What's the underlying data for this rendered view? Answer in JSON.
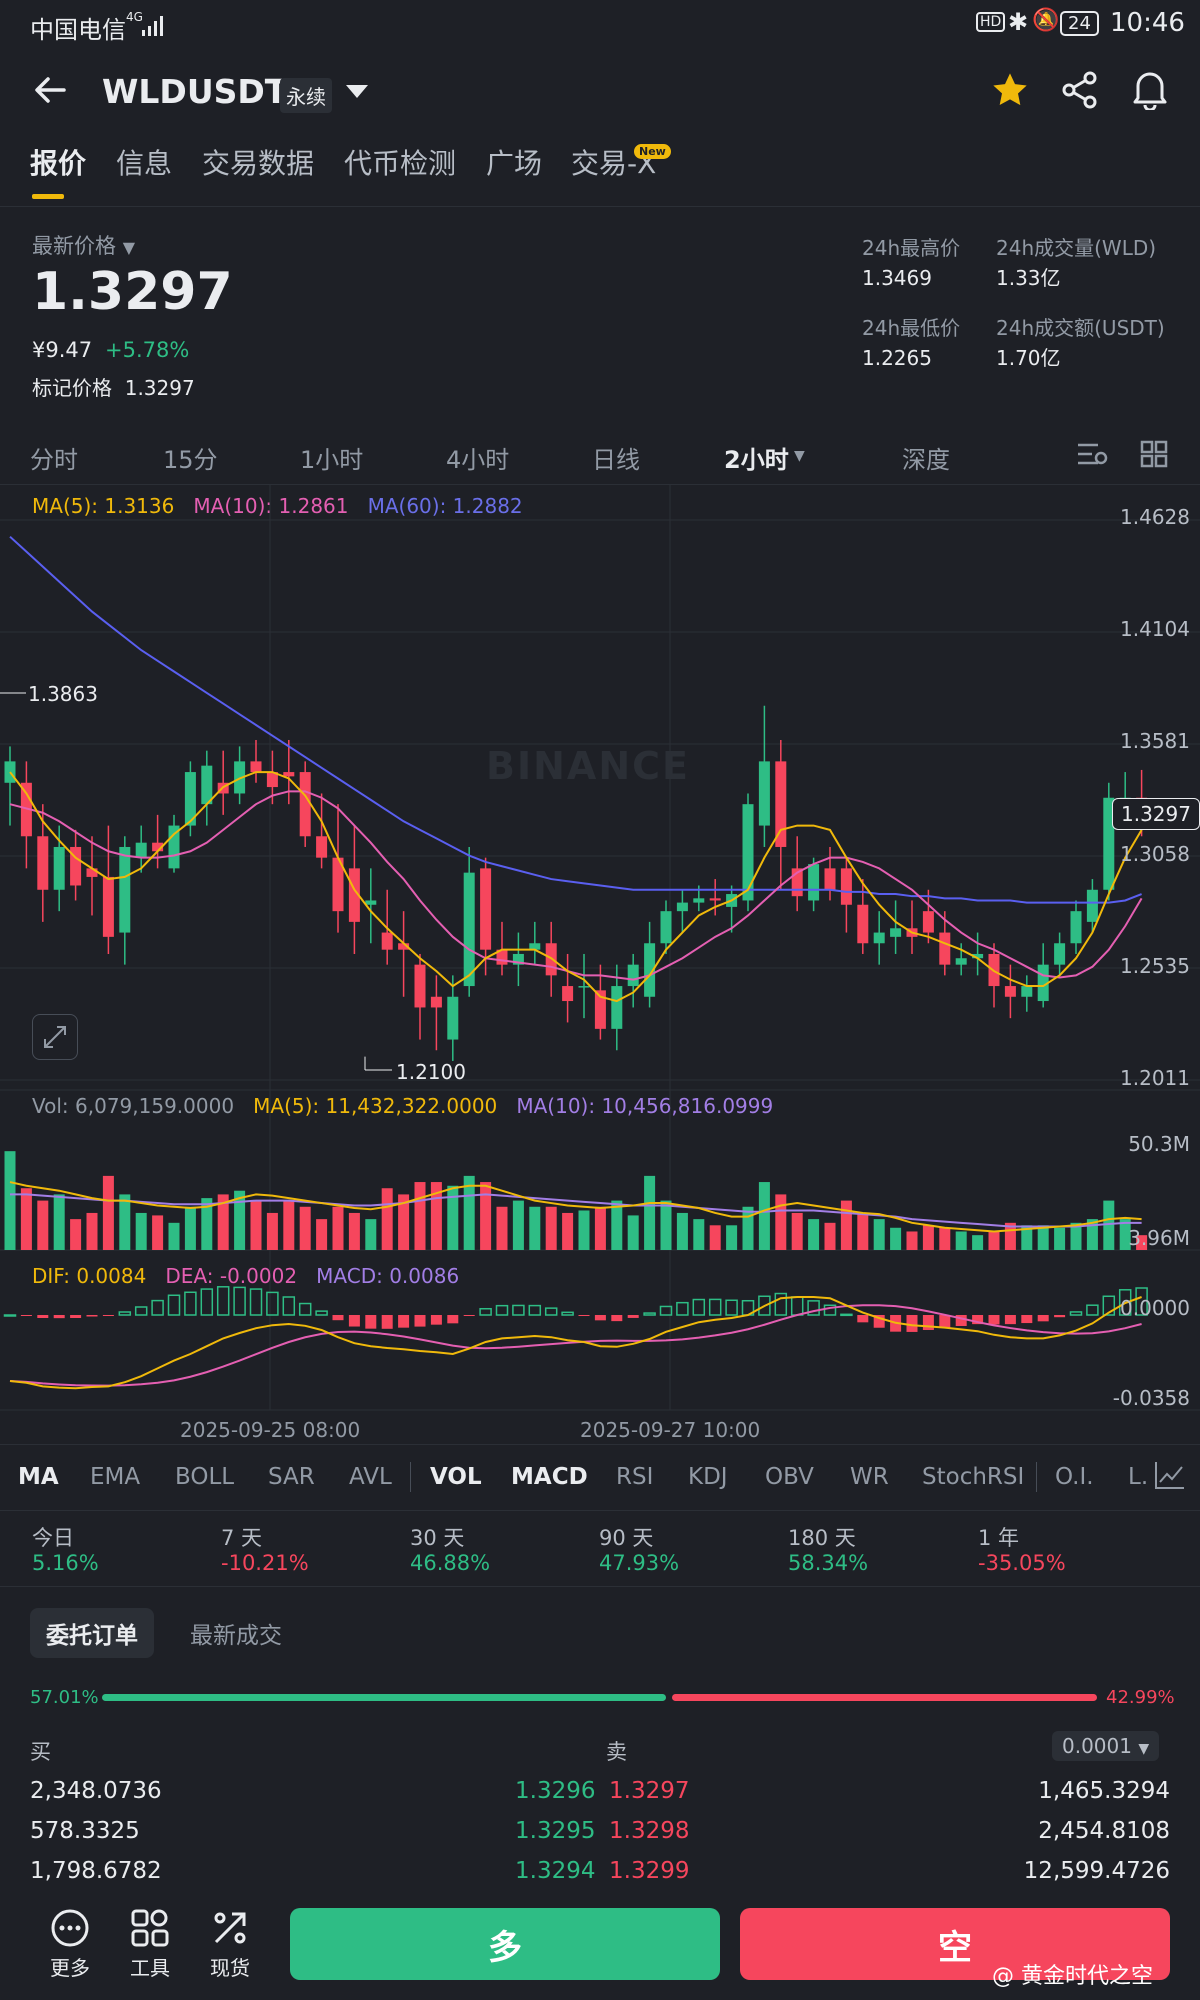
{
  "status": {
    "carrier": "中国电信",
    "network": "4G",
    "battery": "24",
    "time": "10:46"
  },
  "header": {
    "symbol": "WLDUSDT",
    "badge": "永续"
  },
  "tabs": [
    "报价",
    "信息",
    "交易数据",
    "代币检测",
    "广场",
    "交易-X"
  ],
  "tab_new_badge": "New",
  "price": {
    "label": "最新价格",
    "last": "1.3297",
    "cny": "¥9.47",
    "change": "+5.78%",
    "mark_label": "标记价格",
    "mark": "1.3297"
  },
  "stats": [
    {
      "label": "24h最高价",
      "value": "1.3469"
    },
    {
      "label": "24h成交量(WLD)",
      "value": "1.33亿"
    },
    {
      "label": "24h最低价",
      "value": "1.2265"
    },
    {
      "label": "24h成交额(USDT)",
      "value": "1.70亿"
    }
  ],
  "timeframes": [
    "分时",
    "15分",
    "1小时",
    "4小时",
    "日线",
    "2小时",
    "深度"
  ],
  "ma_legend": {
    "ma5": "MA(5): 1.3136",
    "ma10": "MA(10): 1.2861",
    "ma60": "MA(60): 1.2882"
  },
  "price_axis": [
    "1.4628",
    "1.4104",
    "1.3581",
    "1.3058",
    "1.2535",
    "1.2011"
  ],
  "current_price_tag": "1.3297",
  "high_marker": "1.3863",
  "low_marker": "1.2100",
  "watermark": "BINANCE",
  "vol_legend": {
    "vol": "Vol: 6,079,159.0000",
    "ma5": "MA(5): 11,432,322.0000",
    "ma10": "MA(10): 10,456,816.0999"
  },
  "vol_axis": [
    "50.3M",
    "3.96M"
  ],
  "macd_legend": {
    "dif": "DIF: 0.0084",
    "dea": "DEA: -0.0002",
    "macd": "MACD: 0.0086"
  },
  "macd_axis": [
    "0.0000",
    "-0.0358"
  ],
  "time_labels": [
    "2025-09-25 08:00",
    "2025-09-27 10:00"
  ],
  "indicators": [
    "MA",
    "EMA",
    "BOLL",
    "SAR",
    "AVL",
    "VOL",
    "MACD",
    "RSI",
    "KDJ",
    "OBV",
    "WR",
    "StochRSI",
    "O.I.",
    "L."
  ],
  "period_changes": [
    {
      "label": "今日",
      "value": "5.16%"
    },
    {
      "label": "7 天",
      "value": "-10.21%"
    },
    {
      "label": "30 天",
      "value": "46.88%"
    },
    {
      "label": "90 天",
      "value": "47.93%"
    },
    {
      "label": "180 天",
      "value": "58.34%"
    },
    {
      "label": "1 年",
      "value": "-35.05%"
    }
  ],
  "orderbook": {
    "tab_active": "委托订单",
    "tab_other": "最新成交",
    "buy_pct": "57.01%",
    "sell_pct": "42.99%",
    "buy_ratio": 0.5701,
    "buy_label": "买",
    "sell_label": "卖",
    "precision": "0.0001",
    "rows": [
      {
        "bid_qty": "2,348.0736",
        "bid": "1.3296",
        "ask": "1.3297",
        "ask_qty": "1,465.3294"
      },
      {
        "bid_qty": "578.3325",
        "bid": "1.3295",
        "ask": "1.3298",
        "ask_qty": "2,454.8108"
      },
      {
        "bid_qty": "1,798.6782",
        "bid": "1.3294",
        "ask": "1.3299",
        "ask_qty": "12,599.4726"
      }
    ]
  },
  "footer": {
    "more": "更多",
    "tools": "工具",
    "spot": "现货",
    "long": "多",
    "short": "空",
    "credit": "@ 黄金时代之空"
  },
  "chart_data": {
    "type": "candlestick",
    "interval": "2小时",
    "candles": [
      [
        1.34,
        1.357,
        1.32,
        1.35
      ],
      [
        1.34,
        1.35,
        1.3,
        1.315
      ],
      [
        1.315,
        1.33,
        1.275,
        1.29
      ],
      [
        1.29,
        1.32,
        1.28,
        1.31
      ],
      [
        1.31,
        1.318,
        1.285,
        1.292
      ],
      [
        1.3,
        1.315,
        1.278,
        1.296
      ],
      [
        1.296,
        1.32,
        1.26,
        1.268
      ],
      [
        1.27,
        1.315,
        1.255,
        1.31
      ],
      [
        1.305,
        1.32,
        1.298,
        1.312
      ],
      [
        1.312,
        1.325,
        1.3,
        1.308
      ],
      [
        1.3,
        1.325,
        1.298,
        1.32
      ],
      [
        1.32,
        1.35,
        1.315,
        1.345
      ],
      [
        1.33,
        1.355,
        1.32,
        1.348
      ],
      [
        1.34,
        1.355,
        1.325,
        1.335
      ],
      [
        1.335,
        1.357,
        1.33,
        1.35
      ],
      [
        1.35,
        1.36,
        1.34,
        1.345
      ],
      [
        1.345,
        1.355,
        1.33,
        1.338
      ],
      [
        1.345,
        1.36,
        1.33,
        1.343
      ],
      [
        1.345,
        1.35,
        1.31,
        1.315
      ],
      [
        1.315,
        1.335,
        1.3,
        1.305
      ],
      [
        1.305,
        1.33,
        1.27,
        1.28
      ],
      [
        1.3,
        1.32,
        1.26,
        1.275
      ],
      [
        1.283,
        1.3,
        1.265,
        1.285
      ],
      [
        1.27,
        1.29,
        1.255,
        1.262
      ],
      [
        1.265,
        1.28,
        1.24,
        1.262
      ],
      [
        1.255,
        1.26,
        1.22,
        1.235
      ],
      [
        1.24,
        1.25,
        1.215,
        1.235
      ],
      [
        1.22,
        1.25,
        1.21,
        1.24
      ],
      [
        1.245,
        1.31,
        1.24,
        1.298
      ],
      [
        1.3,
        1.305,
        1.25,
        1.262
      ],
      [
        1.262,
        1.275,
        1.25,
        1.255
      ],
      [
        1.255,
        1.27,
        1.245,
        1.26
      ],
      [
        1.262,
        1.275,
        1.255,
        1.265
      ],
      [
        1.265,
        1.275,
        1.24,
        1.25
      ],
      [
        1.245,
        1.26,
        1.228,
        1.238
      ],
      [
        1.245,
        1.26,
        1.23,
        1.245
      ],
      [
        1.243,
        1.255,
        1.22,
        1.225
      ],
      [
        1.225,
        1.255,
        1.215,
        1.245
      ],
      [
        1.245,
        1.26,
        1.235,
        1.255
      ],
      [
        1.24,
        1.275,
        1.235,
        1.265
      ],
      [
        1.265,
        1.285,
        1.26,
        1.28
      ],
      [
        1.28,
        1.29,
        1.27,
        1.284
      ],
      [
        1.284,
        1.292,
        1.28,
        1.286
      ],
      [
        1.286,
        1.295,
        1.278,
        1.285
      ],
      [
        1.282,
        1.292,
        1.27,
        1.288
      ],
      [
        1.285,
        1.335,
        1.28,
        1.33
      ],
      [
        1.32,
        1.376,
        1.31,
        1.35
      ],
      [
        1.35,
        1.36,
        1.29,
        1.31
      ],
      [
        1.3,
        1.315,
        1.28,
        1.287
      ],
      [
        1.285,
        1.305,
        1.28,
        1.302
      ],
      [
        1.3,
        1.31,
        1.285,
        1.29
      ],
      [
        1.3,
        1.305,
        1.27,
        1.283
      ],
      [
        1.283,
        1.295,
        1.26,
        1.265
      ],
      [
        1.265,
        1.28,
        1.255,
        1.27
      ],
      [
        1.268,
        1.285,
        1.26,
        1.272
      ],
      [
        1.272,
        1.285,
        1.26,
        1.268
      ],
      [
        1.28,
        1.29,
        1.265,
        1.27
      ],
      [
        1.27,
        1.28,
        1.25,
        1.255
      ],
      [
        1.255,
        1.265,
        1.25,
        1.258
      ],
      [
        1.258,
        1.27,
        1.25,
        1.26
      ],
      [
        1.26,
        1.265,
        1.235,
        1.245
      ],
      [
        1.245,
        1.255,
        1.23,
        1.24
      ],
      [
        1.24,
        1.25,
        1.233,
        1.245
      ],
      [
        1.238,
        1.265,
        1.235,
        1.255
      ],
      [
        1.255,
        1.27,
        1.25,
        1.265
      ],
      [
        1.265,
        1.285,
        1.26,
        1.28
      ],
      [
        1.275,
        1.295,
        1.27,
        1.29
      ],
      [
        1.29,
        1.34,
        1.285,
        1.333
      ],
      [
        1.333,
        1.345,
        1.32,
        1.333
      ],
      [
        1.333,
        1.346,
        1.315,
        1.33
      ]
    ],
    "ma5": [
      1.345,
      1.335,
      1.322,
      1.313,
      1.305,
      1.3,
      1.295,
      1.296,
      1.3,
      1.308,
      1.316,
      1.322,
      1.33,
      1.338,
      1.342,
      1.345,
      1.345,
      1.342,
      1.334,
      1.322,
      1.305,
      1.29,
      1.28,
      1.272,
      1.265,
      1.258,
      1.252,
      1.245,
      1.25,
      1.258,
      1.262,
      1.262,
      1.262,
      1.258,
      1.252,
      1.248,
      1.24,
      1.238,
      1.242,
      1.25,
      1.262,
      1.27,
      1.278,
      1.282,
      1.285,
      1.29,
      1.305,
      1.318,
      1.32,
      1.32,
      1.318,
      1.305,
      1.293,
      1.283,
      1.275,
      1.27,
      1.268,
      1.265,
      1.262,
      1.258,
      1.252,
      1.248,
      1.245,
      1.245,
      1.25,
      1.258,
      1.27,
      1.288,
      1.305,
      1.318
    ],
    "ma10": [
      1.33,
      1.328,
      1.326,
      1.322,
      1.317,
      1.312,
      1.308,
      1.306,
      1.305,
      1.305,
      1.306,
      1.308,
      1.312,
      1.318,
      1.324,
      1.33,
      1.334,
      1.336,
      1.336,
      1.333,
      1.328,
      1.32,
      1.312,
      1.303,
      1.295,
      1.285,
      1.276,
      1.268,
      1.262,
      1.258,
      1.257,
      1.256,
      1.255,
      1.254,
      1.252,
      1.25,
      1.25,
      1.249,
      1.248,
      1.25,
      1.254,
      1.258,
      1.263,
      1.268,
      1.272,
      1.278,
      1.285,
      1.292,
      1.298,
      1.302,
      1.305,
      1.305,
      1.303,
      1.3,
      1.295,
      1.29,
      1.283,
      1.276,
      1.27,
      1.265,
      1.262,
      1.258,
      1.254,
      1.25,
      1.249,
      1.25,
      1.254,
      1.262,
      1.273,
      1.286
    ],
    "ma60": [
      1.455,
      1.448,
      1.441,
      1.434,
      1.427,
      1.42,
      1.414,
      1.408,
      1.402,
      1.397,
      1.392,
      1.387,
      1.382,
      1.377,
      1.372,
      1.367,
      1.362,
      1.357,
      1.352,
      1.347,
      1.342,
      1.337,
      1.332,
      1.327,
      1.322,
      1.318,
      1.314,
      1.31,
      1.306,
      1.303,
      1.301,
      1.299,
      1.297,
      1.295,
      1.294,
      1.293,
      1.292,
      1.291,
      1.29,
      1.29,
      1.29,
      1.29,
      1.29,
      1.29,
      1.29,
      1.29,
      1.29,
      1.29,
      1.29,
      1.29,
      1.29,
      1.289,
      1.289,
      1.288,
      1.288,
      1.287,
      1.287,
      1.286,
      1.286,
      1.285,
      1.285,
      1.285,
      1.284,
      1.284,
      1.284,
      1.284,
      1.284,
      1.284,
      1.285,
      1.288
    ],
    "volume": [
      0.8,
      0.5,
      0.4,
      0.45,
      0.25,
      0.3,
      0.6,
      0.45,
      0.3,
      0.28,
      0.22,
      0.35,
      0.42,
      0.45,
      0.48,
      0.4,
      0.3,
      0.4,
      0.35,
      0.25,
      0.35,
      0.3,
      0.25,
      0.5,
      0.45,
      0.55,
      0.55,
      0.52,
      0.6,
      0.55,
      0.35,
      0.4,
      0.35,
      0.35,
      0.3,
      0.32,
      0.35,
      0.4,
      0.28,
      0.6,
      0.4,
      0.3,
      0.25,
      0.2,
      0.2,
      0.35,
      0.55,
      0.45,
      0.3,
      0.25,
      0.22,
      0.4,
      0.3,
      0.25,
      0.18,
      0.15,
      0.2,
      0.18,
      0.15,
      0.12,
      0.15,
      0.22,
      0.2,
      0.2,
      0.18,
      0.22,
      0.25,
      0.4,
      0.25,
      0.12
    ],
    "vol_ma5": [
      0.55,
      0.52,
      0.5,
      0.48,
      0.45,
      0.42,
      0.4,
      0.4,
      0.38,
      0.36,
      0.35,
      0.34,
      0.35,
      0.38,
      0.42,
      0.45,
      0.44,
      0.42,
      0.4,
      0.38,
      0.36,
      0.34,
      0.33,
      0.35,
      0.38,
      0.42,
      0.46,
      0.5,
      0.52,
      0.52,
      0.48,
      0.44,
      0.4,
      0.38,
      0.36,
      0.35,
      0.34,
      0.35,
      0.36,
      0.38,
      0.38,
      0.36,
      0.34,
      0.3,
      0.27,
      0.27,
      0.32,
      0.36,
      0.38,
      0.36,
      0.34,
      0.32,
      0.3,
      0.29,
      0.26,
      0.22,
      0.2,
      0.18,
      0.17,
      0.16,
      0.15,
      0.16,
      0.17,
      0.18,
      0.19,
      0.2,
      0.22,
      0.25,
      0.26,
      0.25
    ],
    "vol_ma10": [
      0.45,
      0.45,
      0.44,
      0.43,
      0.42,
      0.41,
      0.4,
      0.4,
      0.39,
      0.38,
      0.37,
      0.37,
      0.37,
      0.38,
      0.39,
      0.4,
      0.4,
      0.4,
      0.39,
      0.38,
      0.37,
      0.36,
      0.36,
      0.37,
      0.38,
      0.4,
      0.42,
      0.43,
      0.44,
      0.45,
      0.44,
      0.43,
      0.42,
      0.41,
      0.4,
      0.39,
      0.38,
      0.37,
      0.36,
      0.36,
      0.36,
      0.35,
      0.34,
      0.33,
      0.32,
      0.31,
      0.31,
      0.32,
      0.32,
      0.32,
      0.31,
      0.3,
      0.29,
      0.28,
      0.27,
      0.25,
      0.24,
      0.23,
      0.22,
      0.21,
      0.2,
      0.19,
      0.19,
      0.19,
      0.19,
      0.19,
      0.2,
      0.21,
      0.22,
      0.22
    ]
  }
}
